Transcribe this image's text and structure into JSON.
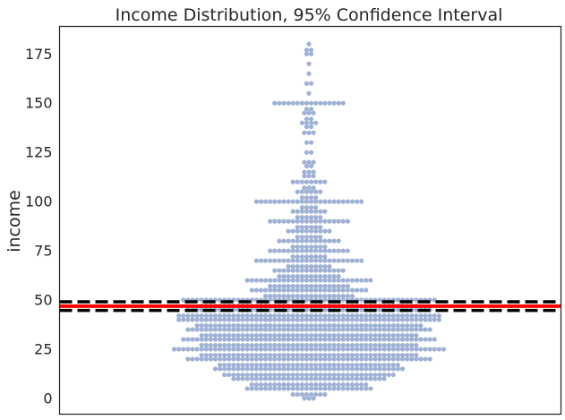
{
  "chart_data": {
    "type": "scatter",
    "subtype": "swarm",
    "title": "Income Distribution, 95% Confidence Interval",
    "xlabel": "",
    "ylabel": "income",
    "ylim": [
      -8,
      189
    ],
    "yticks": [
      0,
      25,
      50,
      75,
      100,
      125,
      150,
      175
    ],
    "grid": false,
    "point_color": "#9FB1D4",
    "mean_line": {
      "value": 46.9,
      "color": "#ff0000"
    },
    "ci_lines": {
      "values": [
        44.7,
        49.1
      ],
      "color": "#000000",
      "style": "dashed"
    },
    "distribution": [
      {
        "v": 0,
        "n": 3
      },
      {
        "v": 2,
        "n": 8
      },
      {
        "v": 5,
        "n": 28
      },
      {
        "v": 7,
        "n": 26
      },
      {
        "v": 10,
        "n": 34
      },
      {
        "v": 12,
        "n": 38
      },
      {
        "v": 15,
        "n": 42
      },
      {
        "v": 17,
        "n": 40
      },
      {
        "v": 20,
        "n": 54
      },
      {
        "v": 22,
        "n": 48
      },
      {
        "v": 25,
        "n": 60
      },
      {
        "v": 27,
        "n": 48
      },
      {
        "v": 30,
        "n": 56
      },
      {
        "v": 32,
        "n": 48
      },
      {
        "v": 35,
        "n": 54
      },
      {
        "v": 37,
        "n": 50
      },
      {
        "v": 40,
        "n": 58
      },
      {
        "v": 42,
        "n": 58
      },
      {
        "v": 45,
        "n": 54
      },
      {
        "v": 47,
        "n": 48
      },
      {
        "v": 50,
        "n": 56
      },
      {
        "v": 52,
        "n": 20
      },
      {
        "v": 55,
        "n": 26
      },
      {
        "v": 57,
        "n": 18
      },
      {
        "v": 60,
        "n": 28
      },
      {
        "v": 62,
        "n": 14
      },
      {
        "v": 65,
        "n": 16
      },
      {
        "v": 67,
        "n": 10
      },
      {
        "v": 70,
        "n": 24
      },
      {
        "v": 72,
        "n": 8
      },
      {
        "v": 75,
        "n": 18
      },
      {
        "v": 77,
        "n": 8
      },
      {
        "v": 80,
        "n": 14
      },
      {
        "v": 82,
        "n": 6
      },
      {
        "v": 85,
        "n": 10
      },
      {
        "v": 87,
        "n": 6
      },
      {
        "v": 90,
        "n": 18
      },
      {
        "v": 92,
        "n": 6
      },
      {
        "v": 95,
        "n": 8
      },
      {
        "v": 97,
        "n": 4
      },
      {
        "v": 100,
        "n": 24
      },
      {
        "v": 102,
        "n": 4
      },
      {
        "v": 105,
        "n": 6
      },
      {
        "v": 107,
        "n": 3
      },
      {
        "v": 110,
        "n": 8
      },
      {
        "v": 113,
        "n": 3
      },
      {
        "v": 115,
        "n": 3
      },
      {
        "v": 118,
        "n": 2
      },
      {
        "v": 120,
        "n": 3
      },
      {
        "v": 125,
        "n": 2
      },
      {
        "v": 130,
        "n": 2
      },
      {
        "v": 135,
        "n": 3
      },
      {
        "v": 138,
        "n": 2
      },
      {
        "v": 140,
        "n": 4
      },
      {
        "v": 142,
        "n": 2
      },
      {
        "v": 145,
        "n": 3
      },
      {
        "v": 147,
        "n": 2
      },
      {
        "v": 150,
        "n": 16
      },
      {
        "v": 155,
        "n": 1
      },
      {
        "v": 160,
        "n": 2
      },
      {
        "v": 165,
        "n": 1
      },
      {
        "v": 170,
        "n": 1
      },
      {
        "v": 175,
        "n": 2
      },
      {
        "v": 177,
        "n": 2
      },
      {
        "v": 180,
        "n": 1
      }
    ]
  }
}
